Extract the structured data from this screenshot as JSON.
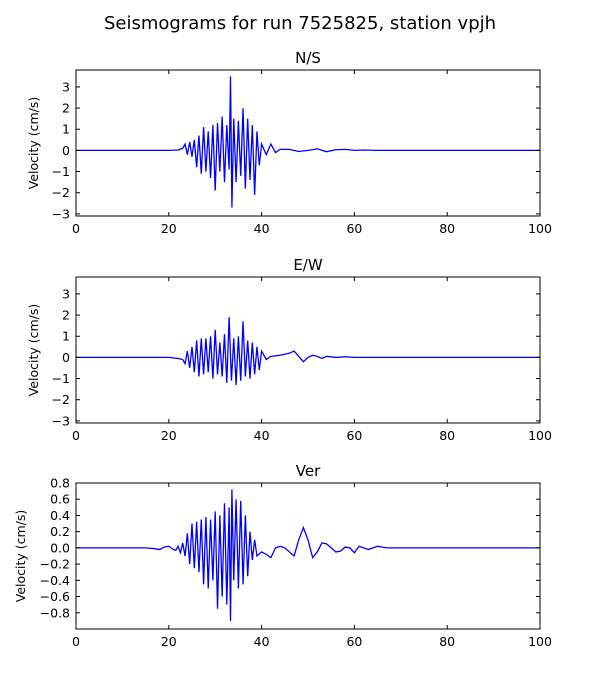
{
  "figure": {
    "title": "Seismograms for run 7525825, station vpjh"
  },
  "chart_data": [
    {
      "type": "line",
      "title": "N/S",
      "xlabel": "",
      "ylabel": "Velocity (cm/s)",
      "xlim": [
        0,
        100
      ],
      "ylim": [
        -3.1,
        3.8
      ],
      "xticks": [
        0,
        20,
        40,
        60,
        80,
        100
      ],
      "yticks": [
        -3,
        -2,
        -1,
        0,
        1,
        2,
        3
      ],
      "color": "#0000ff",
      "x": [
        0,
        10,
        20,
        22,
        23,
        23.5,
        24,
        24.5,
        25,
        25.5,
        26,
        26.5,
        27,
        27.5,
        28,
        28.5,
        29,
        29.5,
        30,
        30.5,
        31,
        31.5,
        32,
        32.5,
        33,
        33.3,
        33.6,
        34,
        34.5,
        35,
        35.5,
        36,
        36.5,
        37,
        37.5,
        38,
        38.5,
        39,
        39.5,
        40,
        41,
        42,
        43,
        44,
        46,
        48,
        50,
        52,
        54,
        56,
        58,
        60,
        62,
        65,
        70,
        80,
        90,
        100
      ],
      "y": [
        0,
        0,
        0,
        0.02,
        0.1,
        0.3,
        -0.2,
        0.4,
        -0.3,
        0.5,
        -0.8,
        0.7,
        -1.1,
        1.1,
        -1.0,
        0.9,
        -1.3,
        1.2,
        -1.9,
        1.3,
        -1.0,
        1.6,
        -1.5,
        1.2,
        -0.9,
        3.5,
        -2.7,
        1.5,
        -1.5,
        1.4,
        -1.2,
        2.0,
        -1.8,
        1.5,
        -1.4,
        1.2,
        -2.1,
        0.9,
        -0.7,
        0.3,
        -0.2,
        0.3,
        -0.1,
        0.05,
        0.05,
        -0.05,
        0,
        0.07,
        -0.06,
        0.03,
        0.05,
        0,
        0.02,
        0,
        0,
        0,
        0,
        0
      ]
    },
    {
      "type": "line",
      "title": "E/W",
      "xlabel": "",
      "ylabel": "Velocity (cm/s)",
      "xlim": [
        0,
        100
      ],
      "ylim": [
        -3.1,
        3.8
      ],
      "xticks": [
        0,
        20,
        40,
        60,
        80,
        100
      ],
      "yticks": [
        -3,
        -2,
        -1,
        0,
        1,
        2,
        3
      ],
      "color": "#0000ff",
      "x": [
        0,
        10,
        20,
        22,
        23,
        23.5,
        24,
        24.5,
        25,
        25.5,
        26,
        26.5,
        27,
        27.5,
        28,
        28.5,
        29,
        29.5,
        30,
        30.5,
        31,
        31.5,
        32,
        32.5,
        33,
        33.5,
        34,
        34.5,
        35,
        35.5,
        36,
        36.5,
        37,
        37.5,
        38,
        38.5,
        39,
        39.5,
        40,
        41,
        42,
        44,
        46,
        47,
        48,
        49,
        50,
        51,
        52,
        53,
        54,
        56,
        58,
        60,
        62,
        65,
        70,
        80,
        90,
        100
      ],
      "y": [
        0,
        0,
        0,
        -0.05,
        -0.1,
        -0.3,
        0.3,
        -0.5,
        0.5,
        -0.7,
        0.8,
        -0.9,
        0.9,
        -0.8,
        0.9,
        -0.7,
        1.0,
        -1.0,
        1.3,
        -0.8,
        0.7,
        -0.9,
        1.1,
        -1.2,
        1.9,
        -1.1,
        0.9,
        -1.3,
        1.0,
        -1.1,
        1.7,
        -0.9,
        0.8,
        -1.0,
        0.7,
        -0.8,
        0.5,
        -0.6,
        0.3,
        -0.1,
        0.05,
        0.1,
        0.2,
        0.3,
        0.05,
        -0.2,
        0.0,
        0.1,
        0.05,
        -0.05,
        0.05,
        0,
        0.03,
        0,
        0,
        0,
        0,
        0,
        0,
        0
      ]
    },
    {
      "type": "line",
      "title": "Ver",
      "xlabel": "",
      "ylabel": "Velocity (cm/s)",
      "xlim": [
        0,
        100
      ],
      "ylim": [
        -1.0,
        0.8
      ],
      "xticks": [
        0,
        20,
        40,
        60,
        80,
        100
      ],
      "yticks": [
        -0.8,
        -0.6,
        -0.4,
        -0.2,
        0.0,
        0.2,
        0.4,
        0.6,
        0.8
      ],
      "ytick_labels": [
        "−0.8",
        "−0.6",
        "−0.4",
        "−0.2",
        "0.0",
        "0.2",
        "0.4",
        "0.6",
        "0.8"
      ],
      "color": "#0000ff",
      "x": [
        0,
        10,
        15,
        17,
        18,
        19,
        20,
        21,
        21.5,
        22,
        22.5,
        23,
        23.5,
        24,
        24.5,
        25,
        25.5,
        26,
        26.5,
        27,
        27.5,
        28,
        28.5,
        29,
        29.5,
        30,
        30.5,
        31,
        31.5,
        32,
        32.5,
        33,
        33.3,
        33.6,
        34,
        34.5,
        35,
        35.5,
        36,
        36.5,
        37,
        37.5,
        38,
        38.5,
        39,
        40,
        41,
        42,
        43,
        44,
        45,
        46,
        47,
        48,
        49,
        50,
        51,
        52,
        53,
        54,
        55,
        56,
        57,
        58,
        59,
        60,
        61,
        62,
        63,
        64,
        65,
        66,
        67,
        70,
        80,
        90,
        100
      ],
      "y": [
        0,
        0,
        0,
        -0.01,
        -0.02,
        0.01,
        0.02,
        -0.02,
        -0.03,
        0.02,
        -0.06,
        0.06,
        -0.1,
        0.18,
        -0.2,
        0.3,
        -0.25,
        0.32,
        -0.3,
        0.35,
        -0.45,
        0.38,
        -0.5,
        0.35,
        -0.4,
        0.45,
        -0.75,
        0.4,
        -0.6,
        0.55,
        -0.7,
        0.5,
        -0.9,
        0.72,
        -0.4,
        0.6,
        -0.5,
        0.58,
        -0.45,
        0.4,
        -0.35,
        0.2,
        -0.15,
        0.1,
        -0.1,
        -0.05,
        -0.08,
        -0.12,
        0.0,
        0.02,
        0.0,
        -0.05,
        -0.1,
        0.1,
        0.25,
        0.1,
        -0.12,
        -0.05,
        0.06,
        0.05,
        0.0,
        -0.05,
        -0.04,
        0.01,
        0.0,
        -0.06,
        0.02,
        0.0,
        -0.02,
        0.0,
        0.02,
        0.01,
        0,
        0,
        0,
        0,
        0
      ]
    }
  ]
}
